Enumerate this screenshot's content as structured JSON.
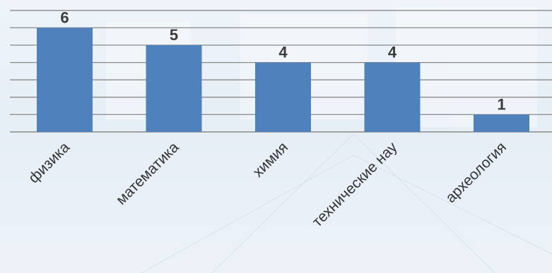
{
  "chart_data": {
    "type": "bar",
    "title": "",
    "xlabel": "",
    "ylabel": "",
    "categories": [
      "физика",
      "математика",
      "химия",
      "технические нау",
      "археология"
    ],
    "values": [
      6,
      5,
      4,
      4,
      1
    ],
    "ylim": [
      0,
      7
    ],
    "grid": true,
    "legend": "none",
    "data_labels": true,
    "category_label_rotation": "-45deg",
    "colors": {
      "bar": "#4f81bd",
      "gridline": "#8a8a8a",
      "value_label": "#3b3b3b",
      "category_label": "#333333",
      "background": "#e9f0f7"
    }
  }
}
